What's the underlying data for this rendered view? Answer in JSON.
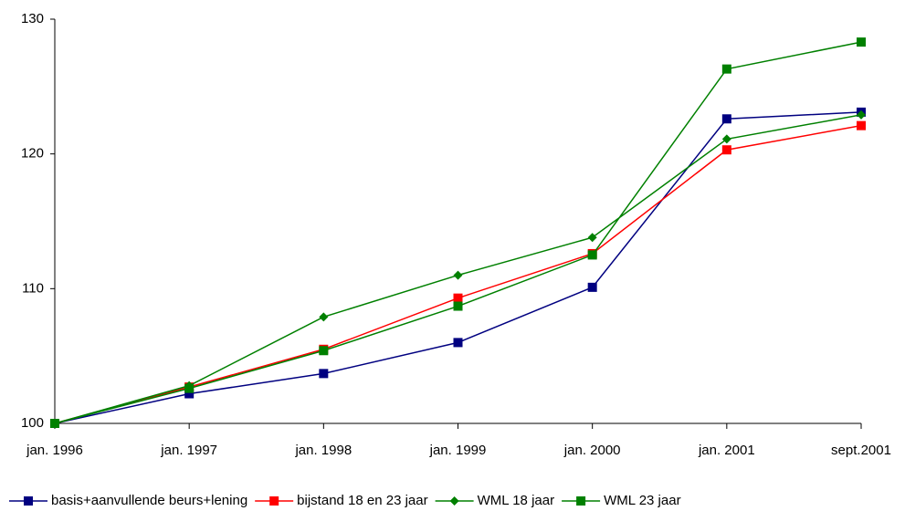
{
  "chart_data": {
    "type": "line",
    "categories": [
      "jan. 1996",
      "jan. 1997",
      "jan. 1998",
      "jan. 1999",
      "jan. 2000",
      "jan. 2001",
      "sept.2001"
    ],
    "series": [
      {
        "name": "basis+aanvullende beurs+lening",
        "color": "#000080",
        "marker": "square",
        "values": [
          100,
          102.2,
          103.7,
          106.0,
          110.1,
          122.6,
          123.1
        ]
      },
      {
        "name": "bijstand 18 en 23 jaar",
        "color": "#ff0000",
        "marker": "square",
        "values": [
          100,
          102.7,
          105.5,
          109.3,
          112.6,
          120.3,
          122.1
        ]
      },
      {
        "name": "WML 18 jaar",
        "color": "#008000",
        "marker": "diamond",
        "values": [
          100,
          102.8,
          107.9,
          111.0,
          113.8,
          121.1,
          122.9
        ]
      },
      {
        "name": "WML 23 jaar",
        "color": "#008000",
        "marker": "square",
        "values": [
          100,
          102.6,
          105.4,
          108.7,
          112.5,
          126.3,
          128.3
        ]
      }
    ],
    "ylim": [
      100,
      130
    ],
    "yticks": [
      100,
      110,
      120,
      130
    ],
    "grid": false,
    "legend": "bottom"
  }
}
